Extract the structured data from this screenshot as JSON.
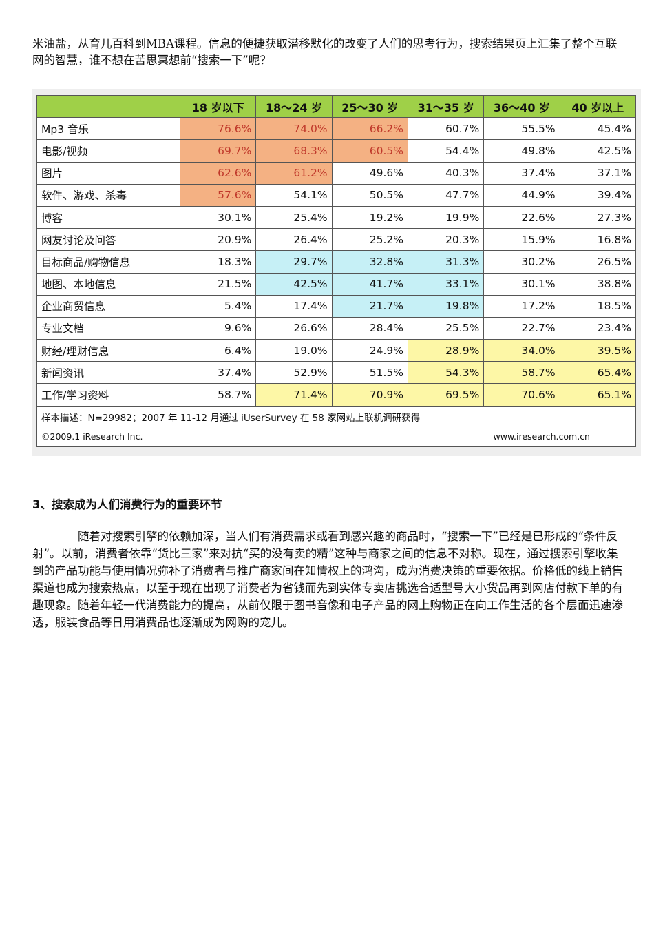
{
  "intro_text": "米油盐，从育儿百科到MBA课程。信息的便捷获取潜移默化的改变了人们的思考行为，搜索结果页上汇集了整个互联网的智慧，谁不想在苦思冥想前“搜索一下”呢？",
  "table": {
    "headers": [
      "18 岁以下",
      "18～24 岁",
      "25～30 岁",
      "31～35 岁",
      "36～40 岁",
      "40 岁以上"
    ],
    "rows": [
      {
        "label": "Mp3 音乐",
        "values": [
          "76.6%",
          "74.0%",
          "66.2%",
          "60.7%",
          "55.5%",
          "45.4%"
        ],
        "highlight": [
          "o",
          "o",
          "o",
          "",
          "",
          ""
        ]
      },
      {
        "label": "电影/视频",
        "values": [
          "69.7%",
          "68.3%",
          "60.5%",
          "54.4%",
          "49.8%",
          "42.5%"
        ],
        "highlight": [
          "o",
          "o",
          "o",
          "",
          "",
          ""
        ]
      },
      {
        "label": "图片",
        "values": [
          "62.6%",
          "61.2%",
          "49.6%",
          "40.3%",
          "37.4%",
          "37.1%"
        ],
        "highlight": [
          "o",
          "o",
          "",
          "",
          "",
          ""
        ]
      },
      {
        "label": "软件、游戏、杀毒",
        "values": [
          "57.6%",
          "54.1%",
          "50.5%",
          "47.7%",
          "44.9%",
          "39.4%"
        ],
        "highlight": [
          "o",
          "",
          "",
          "",
          "",
          ""
        ]
      },
      {
        "label": "博客",
        "values": [
          "30.1%",
          "25.4%",
          "19.2%",
          "19.9%",
          "22.6%",
          "27.3%"
        ],
        "highlight": [
          "",
          "",
          "",
          "",
          "",
          ""
        ]
      },
      {
        "label": "网友讨论及问答",
        "values": [
          "20.9%",
          "26.4%",
          "25.2%",
          "20.3%",
          "15.9%",
          "16.8%"
        ],
        "highlight": [
          "",
          "",
          "",
          "",
          "",
          ""
        ]
      },
      {
        "label": "目标商品/购物信息",
        "values": [
          "18.3%",
          "29.7%",
          "32.8%",
          "31.3%",
          "30.2%",
          "26.5%"
        ],
        "highlight": [
          "",
          "b",
          "b",
          "b",
          "",
          ""
        ]
      },
      {
        "label": "地图、本地信息",
        "values": [
          "21.5%",
          "42.5%",
          "41.7%",
          "33.1%",
          "30.1%",
          "38.8%"
        ],
        "highlight": [
          "",
          "b",
          "b",
          "b",
          "",
          ""
        ]
      },
      {
        "label": "企业商贸信息",
        "values": [
          "5.4%",
          "17.4%",
          "21.7%",
          "19.8%",
          "17.2%",
          "18.5%"
        ],
        "highlight": [
          "",
          "",
          "b",
          "b",
          "",
          ""
        ]
      },
      {
        "label": "专业文档",
        "values": [
          "9.6%",
          "26.6%",
          "28.4%",
          "25.5%",
          "22.7%",
          "23.4%"
        ],
        "highlight": [
          "",
          "",
          "",
          "",
          "",
          ""
        ]
      },
      {
        "label": "财经/理财信息",
        "values": [
          "6.4%",
          "19.0%",
          "24.9%",
          "28.9%",
          "34.0%",
          "39.5%"
        ],
        "highlight": [
          "",
          "",
          "",
          "y",
          "y",
          "y"
        ]
      },
      {
        "label": "新闻资讯",
        "values": [
          "37.4%",
          "52.9%",
          "51.5%",
          "54.3%",
          "58.7%",
          "65.4%"
        ],
        "highlight": [
          "",
          "",
          "",
          "y",
          "y",
          "y"
        ]
      },
      {
        "label": "工作/学习资料",
        "values": [
          "58.7%",
          "71.4%",
          "70.9%",
          "69.5%",
          "70.6%",
          "65.1%"
        ],
        "highlight": [
          "",
          "y",
          "y",
          "y",
          "y",
          "y"
        ]
      }
    ],
    "sample_note": "样本描述：N=29982；2007 年 11-12 月通过 iUserSurvey 在 58 家网站上联机调研获得",
    "copyright": "©2009.1 iResearch Inc.",
    "website": "www.iresearch.com.cn"
  },
  "section_heading": "3、搜索成为人们消费行为的重要环节",
  "body_text": "随着对搜索引擎的依赖加深，当人们有消费需求或看到感兴趣的商品时，“搜索一下”已经是已形成的“条件反射”。以前，消费者依靠“货比三家”来对抗“买的没有卖的精”这种与商家之间的信息不对称。现在，通过搜索引擎收集到的产品功能与使用情况弥补了消费者与推广商家间在知情权上的鸿沟，成为消费决策的重要依据。价格低的线上销售渠道也成为搜索热点，以至于现在出现了消费者为省钱而先到实体专卖店挑选合适型号大小货品再到网店付款下单的有趣现象。随着年轻一代消费能力的提高，从前仅限于图书音像和电子产品的网上购物正在向工作生活的各个层面迅速渗透，服装食品等日用消费品也逐渐成为网购的宠儿。",
  "colors": {
    "header_green": "#9fd048",
    "orange": "#f4b183",
    "blue": "#c6f0f6",
    "yellow": "#fdf7a6"
  }
}
